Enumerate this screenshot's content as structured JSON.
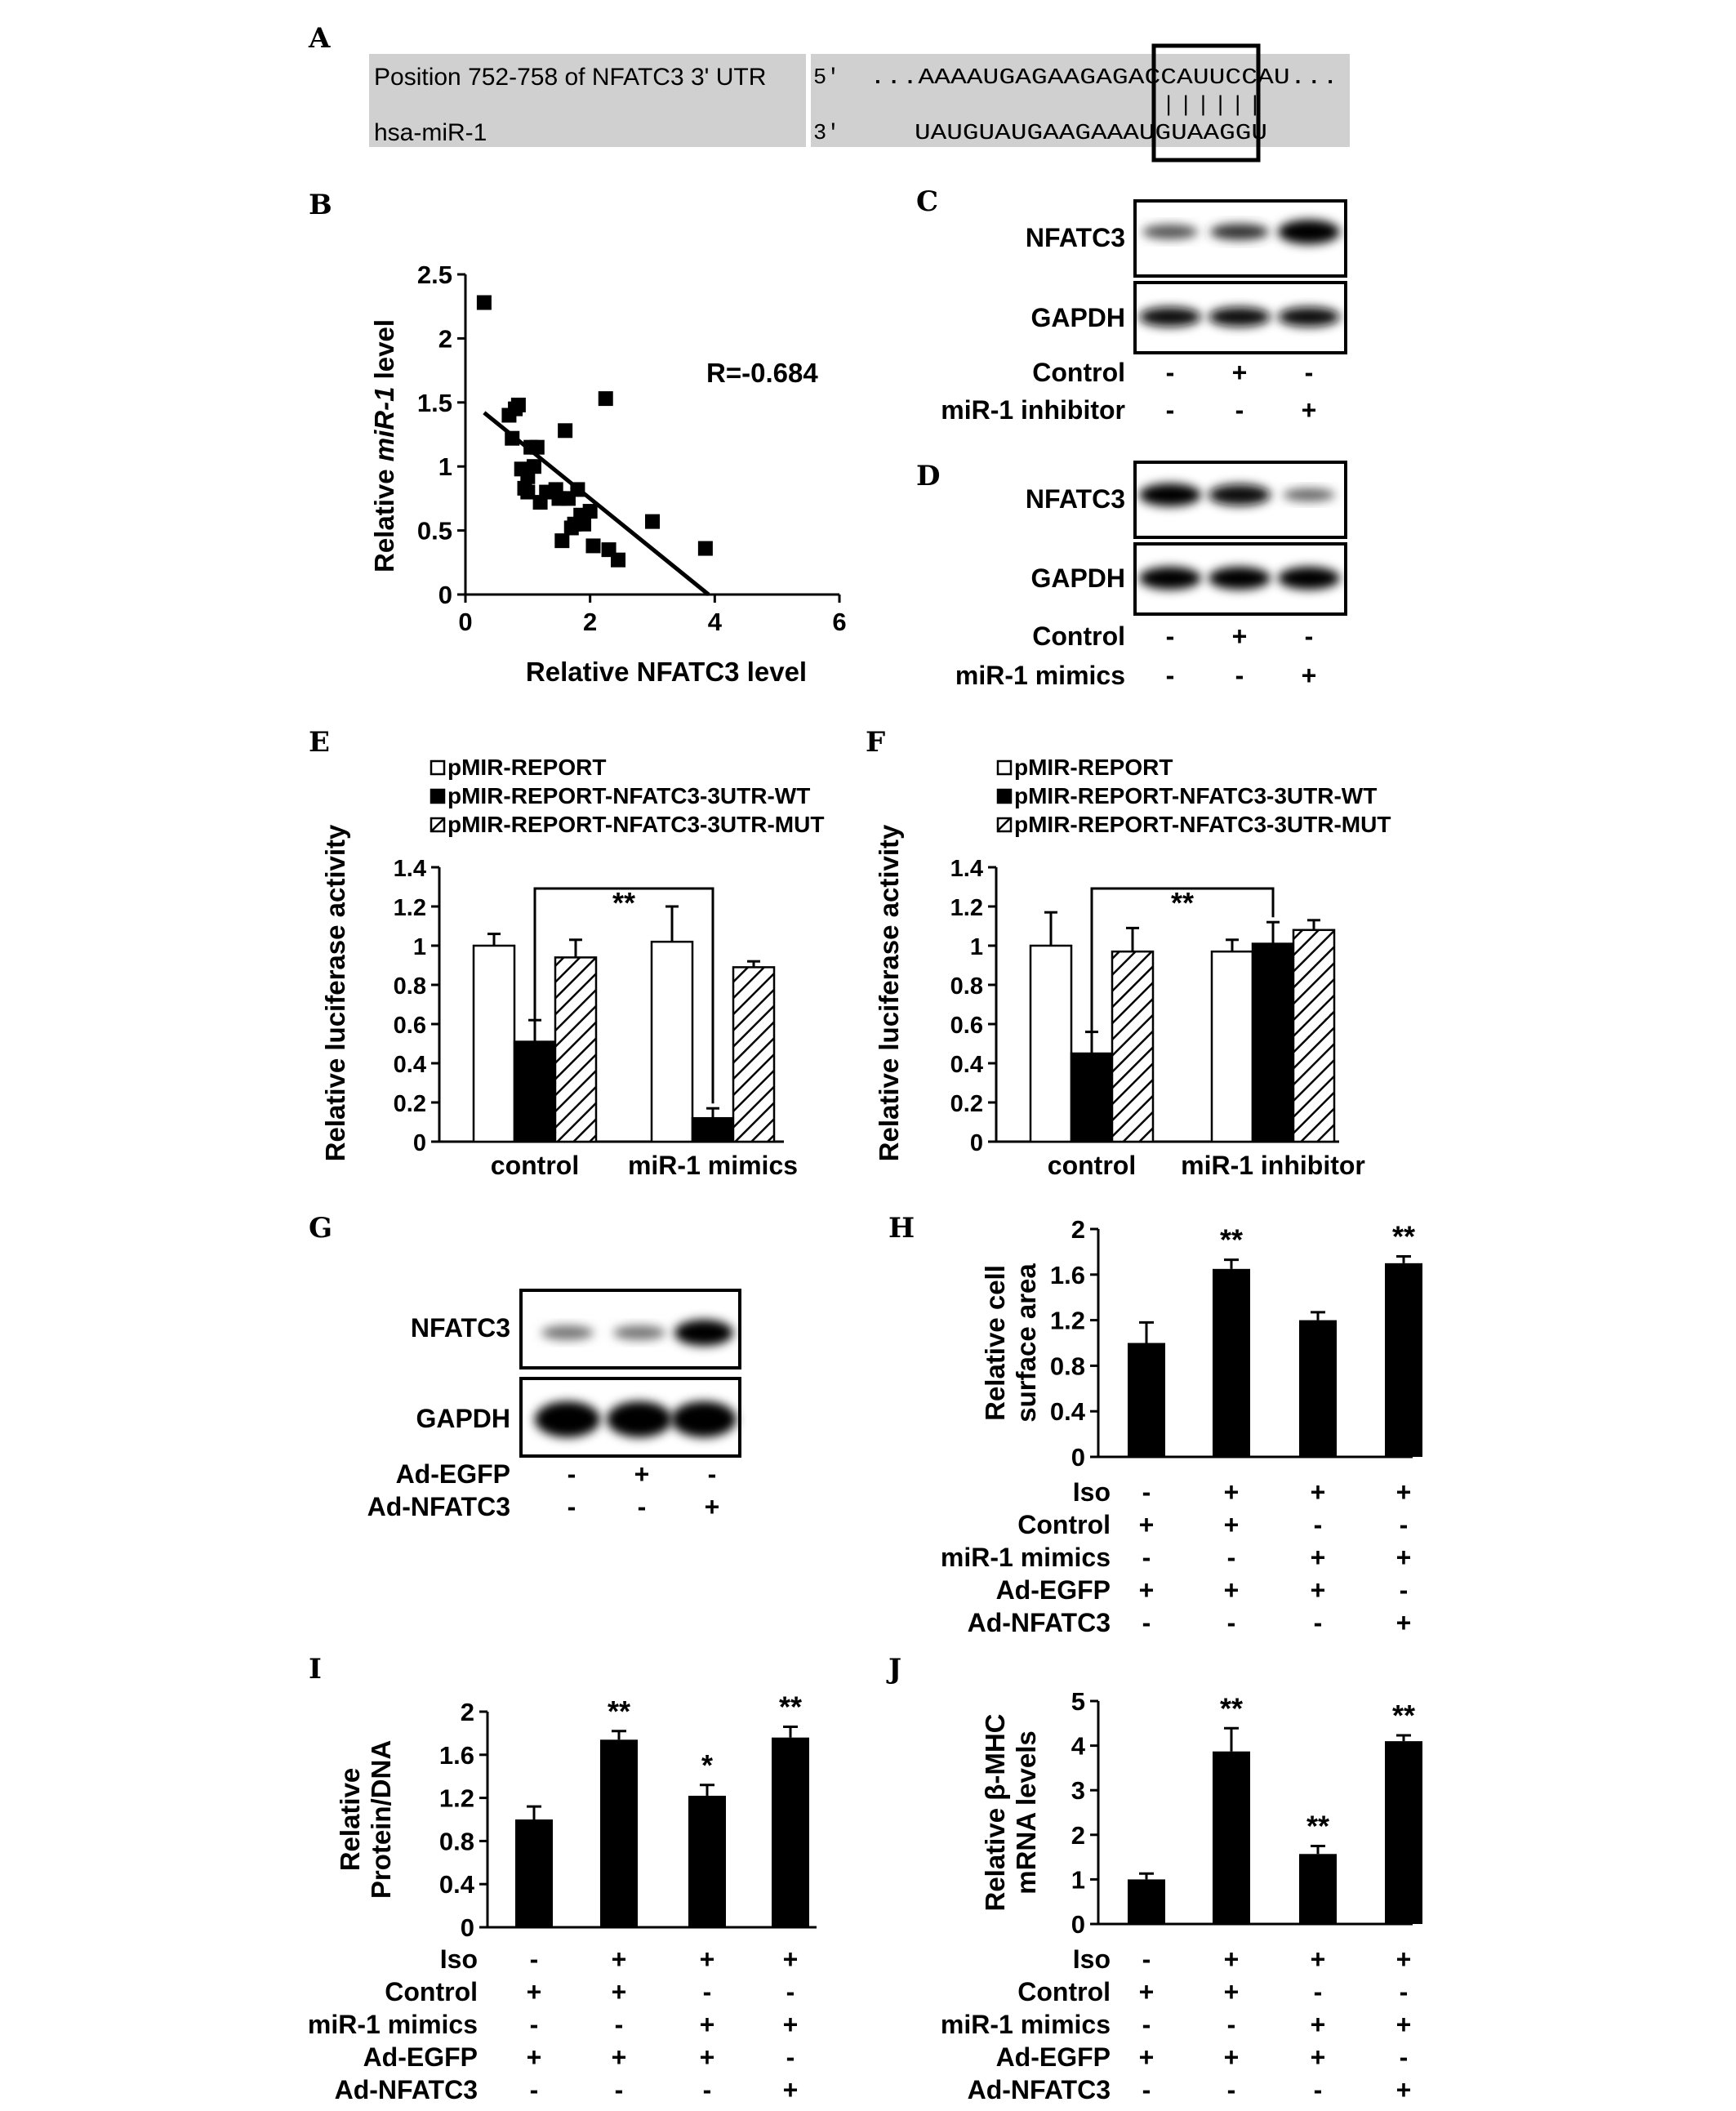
{
  "panels": {
    "A": "A",
    "B": "B",
    "C": "C",
    "D": "D",
    "E": "E",
    "F": "F",
    "G": "G",
    "H": "H",
    "I": "I",
    "J": "J"
  },
  "panelA": {
    "label_top": "Position 752-758 of NFATC3 3' UTR",
    "label_bottom": "hsa-miR-1",
    "prime_top": "5'",
    "prime_bottom": "3'",
    "seq_top": "...AAAAUGAGAAGAGACCAUUCCAU...",
    "pairs": "||||||",
    "seq_bottom": "UAUGUAUGAAGAAAUGUAAGGU"
  },
  "blot_C": {
    "bands": [
      "NFATC3",
      "GAPDH"
    ],
    "conditions": [
      {
        "label": "Control",
        "marks": [
          "-",
          "+",
          "-"
        ]
      },
      {
        "label": "miR-1 inhibitor",
        "marks": [
          "-",
          "-",
          "+"
        ]
      }
    ]
  },
  "blot_D": {
    "bands": [
      "NFATC3",
      "GAPDH"
    ],
    "conditions": [
      {
        "label": "Control",
        "marks": [
          "-",
          "+",
          "-"
        ]
      },
      {
        "label": "miR-1 mimics",
        "marks": [
          "-",
          "-",
          "+"
        ]
      }
    ]
  },
  "blot_G": {
    "bands": [
      "NFATC3",
      "GAPDH"
    ],
    "conditions": [
      {
        "label": "Ad-EGFP",
        "marks": [
          "-",
          "+",
          "-"
        ]
      },
      {
        "label": "Ad-NFATC3",
        "marks": [
          "-",
          "-",
          "+"
        ]
      }
    ]
  },
  "treatments_H": [
    {
      "label": "Iso",
      "marks": [
        "-",
        "+",
        "+",
        "+"
      ]
    },
    {
      "label": "Control",
      "marks": [
        "+",
        "+",
        "-",
        "-"
      ]
    },
    {
      "label": "miR-1 mimics",
      "marks": [
        "-",
        "-",
        "+",
        "+"
      ]
    },
    {
      "label": "Ad-EGFP",
      "marks": [
        "+",
        "+",
        "+",
        "-"
      ]
    },
    {
      "label": "Ad-NFATC3",
      "marks": [
        "-",
        "-",
        "-",
        "+"
      ]
    }
  ],
  "treatments_I": [
    {
      "label": "Iso",
      "marks": [
        "-",
        "+",
        "+",
        "+"
      ]
    },
    {
      "label": "Control",
      "marks": [
        "+",
        "+",
        "-",
        "-"
      ]
    },
    {
      "label": "miR-1 mimics",
      "marks": [
        "-",
        "-",
        "+",
        "+"
      ]
    },
    {
      "label": "Ad-EGFP",
      "marks": [
        "+",
        "+",
        "+",
        "-"
      ]
    },
    {
      "label": "Ad-NFATC3",
      "marks": [
        "-",
        "-",
        "-",
        "+"
      ]
    }
  ],
  "treatments_J": [
    {
      "label": "Iso",
      "marks": [
        "-",
        "+",
        "+",
        "+"
      ]
    },
    {
      "label": "Control",
      "marks": [
        "+",
        "+",
        "-",
        "-"
      ]
    },
    {
      "label": "miR-1 mimics",
      "marks": [
        "-",
        "-",
        "+",
        "+"
      ]
    },
    {
      "label": "Ad-EGFP",
      "marks": [
        "+",
        "+",
        "+",
        "-"
      ]
    },
    {
      "label": "Ad-NFATC3",
      "marks": [
        "-",
        "-",
        "-",
        "+"
      ]
    }
  ],
  "chart_data": [
    {
      "id": "B",
      "type": "scatter",
      "xlabel": "Relative NFATC3 level",
      "ylabel_pre": "Relative ",
      "ylabel_italic": "miR-1",
      "ylabel_post": " level",
      "xlim": [
        0,
        6
      ],
      "ylim": [
        0,
        2.5
      ],
      "xticks": [
        "0",
        "2",
        "4",
        "6"
      ],
      "yticks": [
        "0",
        "0.5",
        "1",
        "1.5",
        "2",
        "2.5"
      ],
      "annotation": "R=-0.684",
      "points": [
        [
          0.3,
          2.28
        ],
        [
          0.7,
          1.4
        ],
        [
          0.75,
          1.22
        ],
        [
          0.8,
          1.45
        ],
        [
          0.85,
          1.48
        ],
        [
          0.9,
          0.98
        ],
        [
          0.95,
          0.83
        ],
        [
          1.0,
          0.8
        ],
        [
          1.0,
          0.92
        ],
        [
          1.05,
          1.15
        ],
        [
          1.1,
          1.0
        ],
        [
          1.15,
          1.15
        ],
        [
          1.2,
          0.72
        ],
        [
          1.3,
          0.8
        ],
        [
          1.45,
          0.82
        ],
        [
          1.5,
          0.75
        ],
        [
          1.55,
          0.42
        ],
        [
          1.6,
          1.28
        ],
        [
          1.65,
          0.75
        ],
        [
          1.7,
          0.52
        ],
        [
          1.75,
          0.55
        ],
        [
          1.8,
          0.82
        ],
        [
          1.85,
          0.62
        ],
        [
          1.9,
          0.55
        ],
        [
          2.0,
          0.65
        ],
        [
          2.05,
          0.38
        ],
        [
          2.25,
          1.53
        ],
        [
          2.3,
          0.35
        ],
        [
          2.45,
          0.27
        ],
        [
          3.0,
          0.57
        ],
        [
          3.85,
          0.36
        ]
      ],
      "fit": [
        [
          0.3,
          1.42
        ],
        [
          3.9,
          0
        ]
      ]
    },
    {
      "id": "E",
      "type": "bar",
      "ylabel": "Relative luciferase activity",
      "ylim": [
        0,
        1.4
      ],
      "yticks": [
        "0",
        "0.2",
        "0.4",
        "0.6",
        "0.8",
        "1",
        "1.2",
        "1.4"
      ],
      "categories": [
        "control",
        "miR-1 mimics"
      ],
      "legend": [
        "pMIR-REPORT",
        "pMIR-REPORT-NFATC3-3UTR-WT",
        "pMIR-REPORT-NFATC3-3UTR-MUT"
      ],
      "series": [
        {
          "name": "pMIR-REPORT",
          "style": "white",
          "values": [
            1.0,
            1.02
          ],
          "errors": [
            0.06,
            0.18
          ]
        },
        {
          "name": "pMIR-REPORT-NFATC3-3UTR-WT",
          "style": "black",
          "values": [
            0.51,
            0.12
          ],
          "errors": [
            0.11,
            0.05
          ]
        },
        {
          "name": "pMIR-REPORT-NFATC3-3UTR-MUT",
          "style": "hatch",
          "values": [
            0.94,
            0.89
          ],
          "errors": [
            0.09,
            0.03
          ]
        }
      ],
      "significance": "**"
    },
    {
      "id": "F",
      "type": "bar",
      "ylabel": "Relative luciferase activity",
      "ylim": [
        0,
        1.4
      ],
      "yticks": [
        "0",
        "0.2",
        "0.4",
        "0.6",
        "0.8",
        "1",
        "1.2",
        "1.4"
      ],
      "categories": [
        "control",
        "miR-1 inhibitor"
      ],
      "legend": [
        "pMIR-REPORT",
        "pMIR-REPORT-NFATC3-3UTR-WT",
        "pMIR-REPORT-NFATC3-3UTR-MUT"
      ],
      "series": [
        {
          "name": "pMIR-REPORT",
          "style": "white",
          "values": [
            1.0,
            0.97
          ],
          "errors": [
            0.17,
            0.06
          ]
        },
        {
          "name": "pMIR-REPORT-NFATC3-3UTR-WT",
          "style": "black",
          "values": [
            0.45,
            1.01
          ],
          "errors": [
            0.11,
            0.11
          ]
        },
        {
          "name": "pMIR-REPORT-NFATC3-3UTR-MUT",
          "style": "hatch",
          "values": [
            0.97,
            1.08
          ],
          "errors": [
            0.12,
            0.05
          ]
        }
      ],
      "significance": "**"
    },
    {
      "id": "H",
      "type": "bar",
      "ylabel": "Relative cell surface area",
      "ylim": [
        0,
        2
      ],
      "yticks": [
        "0",
        "0.4",
        "0.8",
        "1.2",
        "1.6",
        "2"
      ],
      "values": [
        1.0,
        1.65,
        1.2,
        1.7
      ],
      "errors": [
        0.18,
        0.08,
        0.07,
        0.06
      ],
      "stars": [
        "",
        "**",
        "",
        "**"
      ]
    },
    {
      "id": "I",
      "type": "bar",
      "ylabel": "Relative Protein/DNA",
      "ylim": [
        0,
        2
      ],
      "yticks": [
        "0",
        "0.4",
        "0.8",
        "1.2",
        "1.6",
        "2"
      ],
      "values": [
        1.0,
        1.74,
        1.22,
        1.76
      ],
      "errors": [
        0.12,
        0.08,
        0.1,
        0.1
      ],
      "stars": [
        "",
        "**",
        "*",
        "**"
      ]
    },
    {
      "id": "J",
      "type": "bar",
      "ylabel": "Relative β-MHC mRNA levels",
      "ylim": [
        0,
        5
      ],
      "yticks": [
        "0",
        "1",
        "2",
        "3",
        "4",
        "5"
      ],
      "values": [
        1.0,
        3.87,
        1.57,
        4.1
      ],
      "errors": [
        0.13,
        0.52,
        0.18,
        0.13
      ],
      "stars": [
        "",
        "**",
        "**",
        "**"
      ]
    }
  ]
}
